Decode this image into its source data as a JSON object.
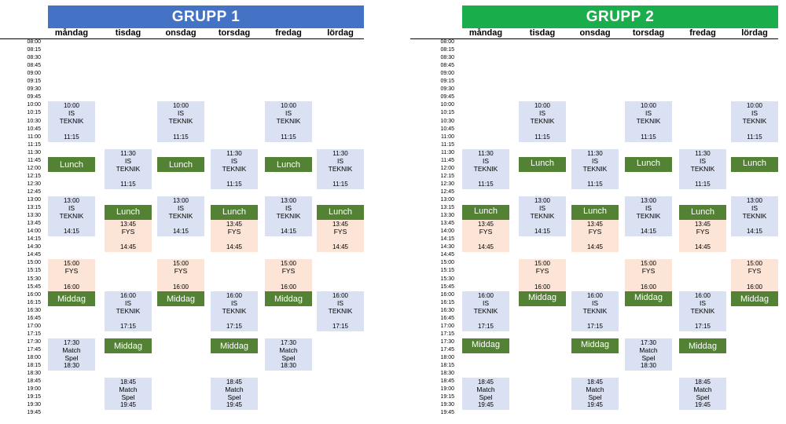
{
  "colors": {
    "group1": "#4472c4",
    "group2": "#1aad4b",
    "meal": "#548235",
    "is": "#d9e1f2",
    "fys": "#fce4d6"
  },
  "groups": [
    {
      "title": "GRUPP 1"
    },
    {
      "title": "GRUPP 2"
    }
  ],
  "days": [
    "måndag",
    "tisdag",
    "onsdag",
    "torsdag",
    "fredag",
    "lördag"
  ],
  "times": [
    "08:00",
    "08:15",
    "08:30",
    "08:45",
    "09:00",
    "09:15",
    "09:30",
    "09:45",
    "10:00",
    "10:15",
    "10:30",
    "10:45",
    "11:00",
    "11:15",
    "11:30",
    "11:45",
    "12:00",
    "12:15",
    "12:30",
    "12:45",
    "13:00",
    "13:15",
    "13:30",
    "13:45",
    "14:00",
    "14:15",
    "14:30",
    "14:45",
    "15:00",
    "15:15",
    "15:30",
    "15:45",
    "16:00",
    "16:15",
    "16:30",
    "16:45",
    "17:00",
    "17:15",
    "17:30",
    "17:45",
    "18:00",
    "18:15",
    "18:30",
    "18:45",
    "19:00",
    "19:15",
    "19:30",
    "19:45"
  ],
  "schedule": [
    [
      {
        "day": 0,
        "kind": "is",
        "start": "10:00",
        "lines": [
          "IS",
          "TEKNIK"
        ],
        "end": "11:15"
      },
      {
        "day": 0,
        "kind": "meal",
        "label": "Lunch"
      },
      {
        "day": 0,
        "kind": "is",
        "start": "13:00",
        "lines": [
          "IS",
          "TEKNIK"
        ],
        "end": "14:15"
      },
      {
        "day": 0,
        "kind": "fys",
        "start": "15:00",
        "lines": [
          "FYS"
        ],
        "end": "16:00"
      },
      {
        "day": 0,
        "kind": "meal",
        "label": "Middag"
      },
      {
        "day": 0,
        "kind": "is",
        "start": "17:30",
        "lines": [
          "Match",
          "Spel"
        ],
        "end": "18:30"
      },
      {
        "day": 1,
        "kind": "is",
        "start": "11:30",
        "lines": [
          "IS",
          "TEKNIK"
        ],
        "end": "11:15"
      },
      {
        "day": 1,
        "kind": "meal",
        "label": "Lunch"
      },
      {
        "day": 1,
        "kind": "fys",
        "start": "13:45",
        "lines": [
          "FYS"
        ],
        "end": "14:45"
      },
      {
        "day": 1,
        "kind": "is",
        "start": "16:00",
        "lines": [
          "IS",
          "TEKNIK"
        ],
        "end": "17:15"
      },
      {
        "day": 1,
        "kind": "meal",
        "label": "Middag"
      },
      {
        "day": 1,
        "kind": "is",
        "start": "18:45",
        "lines": [
          "Match",
          "Spel"
        ],
        "end": "19:45"
      },
      {
        "day": 2,
        "kind": "is",
        "start": "10:00",
        "lines": [
          "IS",
          "TEKNIK"
        ],
        "end": "11:15"
      },
      {
        "day": 2,
        "kind": "meal",
        "label": "Lunch"
      },
      {
        "day": 2,
        "kind": "is",
        "start": "13:00",
        "lines": [
          "IS",
          "TEKNIK"
        ],
        "end": "14:15"
      },
      {
        "day": 2,
        "kind": "fys",
        "start": "15:00",
        "lines": [
          "FYS"
        ],
        "end": "16:00"
      },
      {
        "day": 2,
        "kind": "meal",
        "label": "Middag"
      },
      {
        "day": 3,
        "kind": "is",
        "start": "11:30",
        "lines": [
          "IS",
          "TEKNIK"
        ],
        "end": "11:15"
      },
      {
        "day": 3,
        "kind": "meal",
        "label": "Lunch"
      },
      {
        "day": 3,
        "kind": "fys",
        "start": "13:45",
        "lines": [
          "FYS"
        ],
        "end": "14:45"
      },
      {
        "day": 3,
        "kind": "is",
        "start": "16:00",
        "lines": [
          "IS",
          "TEKNIK"
        ],
        "end": "17:15"
      },
      {
        "day": 3,
        "kind": "meal",
        "label": "Middag"
      },
      {
        "day": 3,
        "kind": "is",
        "start": "18:45",
        "lines": [
          "Match",
          "Spel"
        ],
        "end": "19:45"
      },
      {
        "day": 4,
        "kind": "is",
        "start": "10:00",
        "lines": [
          "IS",
          "TEKNIK"
        ],
        "end": "11:15"
      },
      {
        "day": 4,
        "kind": "meal",
        "label": "Lunch"
      },
      {
        "day": 4,
        "kind": "is",
        "start": "13:00",
        "lines": [
          "IS",
          "TEKNIK"
        ],
        "end": "14:15"
      },
      {
        "day": 4,
        "kind": "fys",
        "start": "15:00",
        "lines": [
          "FYS"
        ],
        "end": "16:00"
      },
      {
        "day": 4,
        "kind": "meal",
        "label": "Middag"
      },
      {
        "day": 4,
        "kind": "is",
        "start": "17:30",
        "lines": [
          "Match",
          "Spel"
        ],
        "end": "18:30"
      },
      {
        "day": 5,
        "kind": "is",
        "start": "11:30",
        "lines": [
          "IS",
          "TEKNIK"
        ],
        "end": "11:15"
      },
      {
        "day": 5,
        "kind": "meal",
        "label": "Lunch"
      },
      {
        "day": 5,
        "kind": "fys",
        "start": "13:45",
        "lines": [
          "FYS"
        ],
        "end": "14:45"
      },
      {
        "day": 5,
        "kind": "is",
        "start": "16:00",
        "lines": [
          "IS",
          "TEKNIK"
        ],
        "end": "17:15"
      }
    ],
    [
      {
        "day": 0,
        "kind": "is",
        "start": "11:30",
        "lines": [
          "IS",
          "TEKNIK"
        ],
        "end": "11:15"
      },
      {
        "day": 0,
        "kind": "meal",
        "label": "Lunch"
      },
      {
        "day": 0,
        "kind": "fys",
        "start": "13:45",
        "lines": [
          "FYS"
        ],
        "end": "14:45"
      },
      {
        "day": 0,
        "kind": "is",
        "start": "16:00",
        "lines": [
          "IS",
          "TEKNIK"
        ],
        "end": "17:15"
      },
      {
        "day": 0,
        "kind": "meal",
        "label": "Middag"
      },
      {
        "day": 0,
        "kind": "is",
        "start": "18:45",
        "lines": [
          "Match",
          "Spel"
        ],
        "end": "19:45"
      },
      {
        "day": 1,
        "kind": "is",
        "start": "10:00",
        "lines": [
          "IS",
          "TEKNIK"
        ],
        "end": "11:15"
      },
      {
        "day": 1,
        "kind": "meal",
        "label": "Lunch"
      },
      {
        "day": 1,
        "kind": "is",
        "start": "13:00",
        "lines": [
          "IS",
          "TEKNIK"
        ],
        "end": "14:15"
      },
      {
        "day": 1,
        "kind": "fys",
        "start": "15:00",
        "lines": [
          "FYS"
        ],
        "end": "16:00"
      },
      {
        "day": 1,
        "kind": "meal",
        "label": "Middag"
      },
      {
        "day": 2,
        "kind": "is",
        "start": "11:30",
        "lines": [
          "IS",
          "TEKNIK"
        ],
        "end": "11:15"
      },
      {
        "day": 2,
        "kind": "meal",
        "label": "Lunch"
      },
      {
        "day": 2,
        "kind": "fys",
        "start": "13:45",
        "lines": [
          "FYS"
        ],
        "end": "14:45"
      },
      {
        "day": 2,
        "kind": "is",
        "start": "16:00",
        "lines": [
          "IS",
          "TEKNIK"
        ],
        "end": "17:15"
      },
      {
        "day": 2,
        "kind": "meal",
        "label": "Middag"
      },
      {
        "day": 2,
        "kind": "is",
        "start": "18:45",
        "lines": [
          "Match",
          "Spel"
        ],
        "end": "19:45"
      },
      {
        "day": 3,
        "kind": "is",
        "start": "10:00",
        "lines": [
          "IS",
          "TEKNIK"
        ],
        "end": "11:15"
      },
      {
        "day": 3,
        "kind": "meal",
        "label": "Lunch"
      },
      {
        "day": 3,
        "kind": "is",
        "start": "13:00",
        "lines": [
          "IS",
          "TEKNIK"
        ],
        "end": "14:15"
      },
      {
        "day": 3,
        "kind": "fys",
        "start": "15:00",
        "lines": [
          "FYS"
        ],
        "end": "16:00"
      },
      {
        "day": 3,
        "kind": "meal",
        "label": "Middag"
      },
      {
        "day": 3,
        "kind": "is",
        "start": "17:30",
        "lines": [
          "Match",
          "Spel"
        ],
        "end": "18:30"
      },
      {
        "day": 4,
        "kind": "is",
        "start": "11:30",
        "lines": [
          "IS",
          "TEKNIK"
        ],
        "end": "11:15"
      },
      {
        "day": 4,
        "kind": "meal",
        "label": "Lunch"
      },
      {
        "day": 4,
        "kind": "fys",
        "start": "13:45",
        "lines": [
          "FYS"
        ],
        "end": "14:45"
      },
      {
        "day": 4,
        "kind": "is",
        "start": "16:00",
        "lines": [
          "IS",
          "TEKNIK"
        ],
        "end": "17:15"
      },
      {
        "day": 4,
        "kind": "meal",
        "label": "Middag"
      },
      {
        "day": 4,
        "kind": "is",
        "start": "18:45",
        "lines": [
          "Match",
          "Spel"
        ],
        "end": "19:45"
      },
      {
        "day": 5,
        "kind": "is",
        "start": "10:00",
        "lines": [
          "IS",
          "TEKNIK"
        ],
        "end": "11:15"
      },
      {
        "day": 5,
        "kind": "meal",
        "label": "Lunch"
      },
      {
        "day": 5,
        "kind": "is",
        "start": "13:00",
        "lines": [
          "IS",
          "TEKNIK"
        ],
        "end": "14:15"
      },
      {
        "day": 5,
        "kind": "fys",
        "start": "15:00",
        "lines": [
          "FYS"
        ],
        "end": "16:00"
      },
      {
        "day": 5,
        "kind": "meal",
        "label": "Middag"
      }
    ]
  ]
}
